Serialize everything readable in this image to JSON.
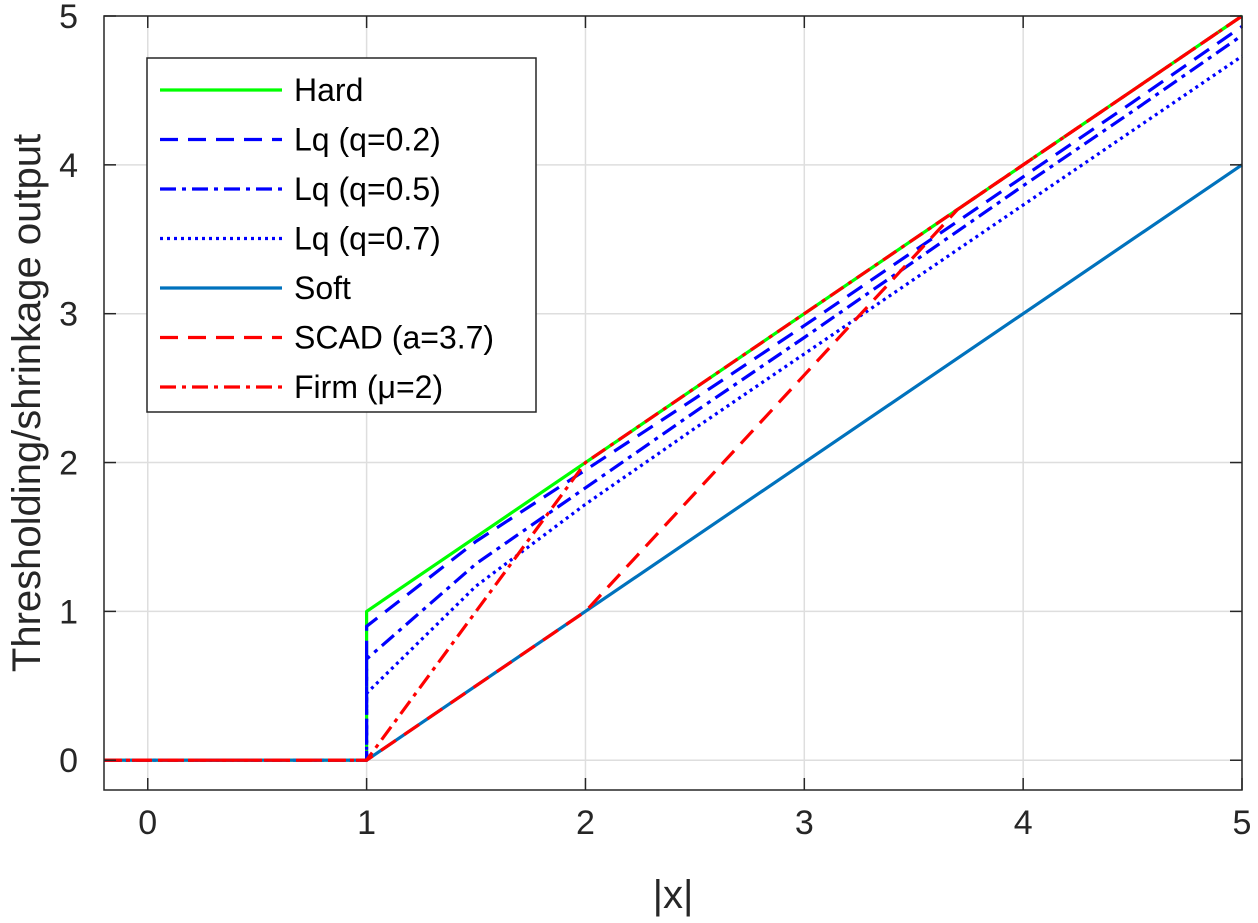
{
  "chart_data": {
    "type": "line",
    "xlabel": "|x|",
    "ylabel": "Thresholding/shrinkage output",
    "xlim": [
      -0.2,
      5
    ],
    "ylim": [
      -0.2,
      5
    ],
    "xticks": [
      "0",
      "1",
      "2",
      "3",
      "4",
      "5"
    ],
    "yticks": [
      "0",
      "1",
      "2",
      "3",
      "4",
      "5"
    ],
    "grid": true,
    "legend_position": "top-left",
    "series": [
      {
        "name": "Hard",
        "color": "#00ff00",
        "dash": "solid",
        "x": [
          -0.2,
          1,
          1,
          5
        ],
        "y": [
          0,
          0,
          1,
          5
        ]
      },
      {
        "name": "Lq (q=0.2)",
        "color": "#0000ff",
        "dash": "dash",
        "x": [
          -0.2,
          1,
          1,
          1.5,
          2,
          2.5,
          3,
          3.5,
          4,
          4.5,
          5
        ],
        "y": [
          0,
          0,
          0.9,
          1.47,
          1.95,
          2.43,
          2.92,
          3.42,
          3.92,
          4.42,
          4.93
        ]
      },
      {
        "name": "Lq (q=0.5)",
        "color": "#0000ff",
        "dash": "dashdot",
        "x": [
          -0.2,
          1,
          1,
          1.5,
          2,
          2.5,
          3,
          3.5,
          4,
          4.5,
          5
        ],
        "y": [
          0,
          0,
          0.68,
          1.32,
          1.83,
          2.34,
          2.84,
          3.35,
          3.86,
          4.36,
          4.87
        ]
      },
      {
        "name": "Lq (q=0.7)",
        "color": "#0000ff",
        "dash": "dot",
        "x": [
          -0.2,
          1,
          1,
          1.5,
          2,
          2.5,
          3,
          3.5,
          4,
          4.5,
          5
        ],
        "y": [
          0,
          0,
          0.45,
          1.17,
          1.72,
          2.23,
          2.73,
          3.23,
          3.73,
          4.23,
          4.73
        ]
      },
      {
        "name": "Soft",
        "color": "#0072bd",
        "dash": "solid",
        "x": [
          -0.2,
          1,
          5
        ],
        "y": [
          0,
          0,
          4
        ]
      },
      {
        "name": "SCAD (a=3.7)",
        "color": "#ff0000",
        "dash": "dash",
        "x": [
          -0.2,
          1,
          2,
          3.7,
          5
        ],
        "y": [
          0,
          0,
          1,
          3.7,
          5
        ]
      },
      {
        "name": "Firm (μ=2)",
        "color": "#ff0000",
        "dash": "dashdot",
        "x": [
          -0.2,
          1,
          2,
          5
        ],
        "y": [
          0,
          0,
          2,
          5
        ]
      }
    ]
  }
}
